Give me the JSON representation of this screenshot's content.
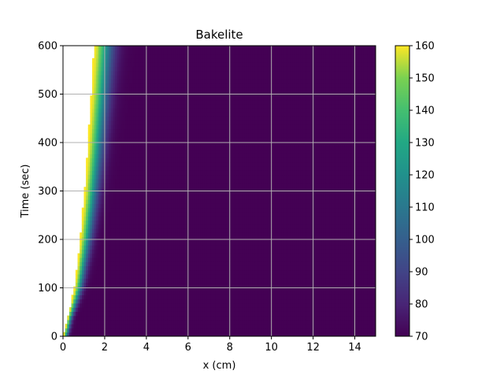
{
  "chart_data": {
    "type": "heatmap",
    "title": "Bakelite",
    "xlabel": "x (cm)",
    "ylabel": "Time (sec)",
    "xlim": [
      0,
      15
    ],
    "ylim": [
      0,
      600
    ],
    "xticks": [
      "0",
      "2",
      "4",
      "6",
      "8",
      "10",
      "12",
      "14"
    ],
    "yticks": [
      "0",
      "100",
      "200",
      "300",
      "400",
      "500",
      "600"
    ],
    "grid": true,
    "colorbar": {
      "colormap": "viridis",
      "range": [
        70,
        160
      ],
      "ticks": [
        "70",
        "80",
        "90",
        "100",
        "110",
        "120",
        "130",
        "140",
        "150",
        "160"
      ]
    },
    "front_boundary": {
      "description_of_surface": "surface temperature 160 at the moving boundary",
      "t": [
        0,
        100,
        200,
        300,
        400,
        500,
        600
      ],
      "x": [
        0.0,
        0.55,
        0.82,
        1.03,
        1.2,
        1.35,
        1.48
      ]
    },
    "thermal_layer_width_cm": 1.0,
    "initial_temperature": 70
  }
}
